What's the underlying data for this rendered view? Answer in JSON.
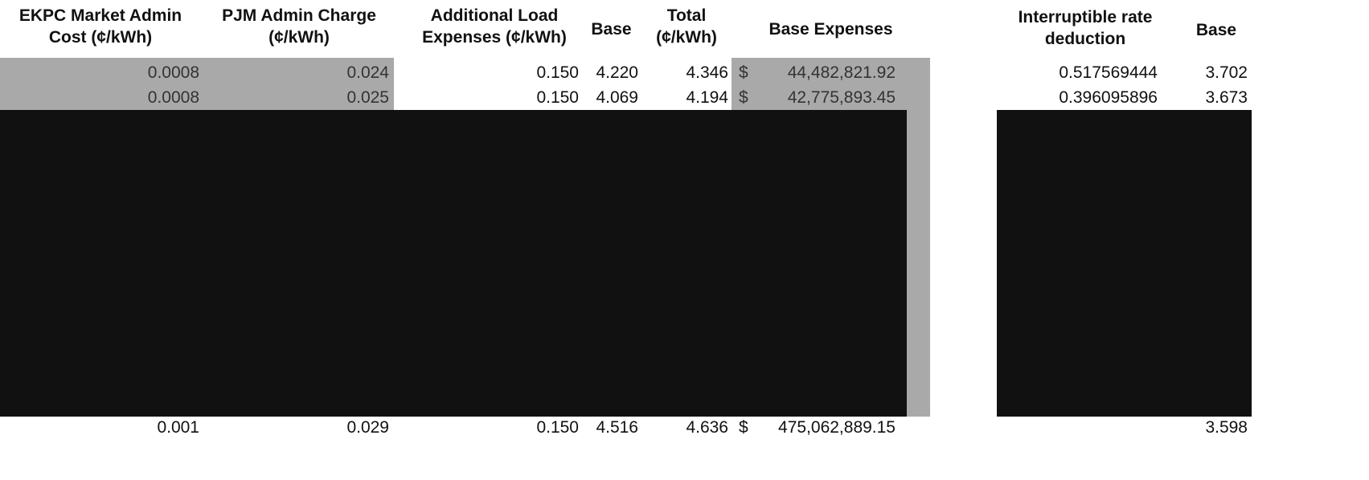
{
  "headers": {
    "ekpc_market_admin": "EKPC Market Admin\nCost (¢/kWh)",
    "pjm_admin_charge": "PJM Admin Charge\n(¢/kWh)",
    "additional_load": "Additional Load\nExpenses (¢/kWh)",
    "base": "Base",
    "total": "Total\n(¢/kWh)",
    "base_expenses": "Base Expenses",
    "interruptible": "Interruptible rate\ndeduction",
    "base_right": "Base"
  },
  "rows": [
    {
      "ekpc": "0.0008",
      "pjm": "0.024",
      "additional": "0.150",
      "base": "4.220",
      "total": "4.346",
      "currency": "$",
      "expenses": "44,482,821.92",
      "interruptible": "0.517569444",
      "base_right": "3.702"
    },
    {
      "ekpc": "0.0008",
      "pjm": "0.025",
      "additional": "0.150",
      "base": "4.069",
      "total": "4.194",
      "currency": "$",
      "expenses": "42,775,893.45",
      "interruptible": "0.396095896",
      "base_right": "3.673"
    }
  ],
  "totals": {
    "ekpc": "0.001",
    "pjm": "0.029",
    "additional": "0.150",
    "base": "4.516",
    "total": "4.636",
    "currency": "$",
    "expenses": "475,062,889.15",
    "base_right": "3.598"
  }
}
